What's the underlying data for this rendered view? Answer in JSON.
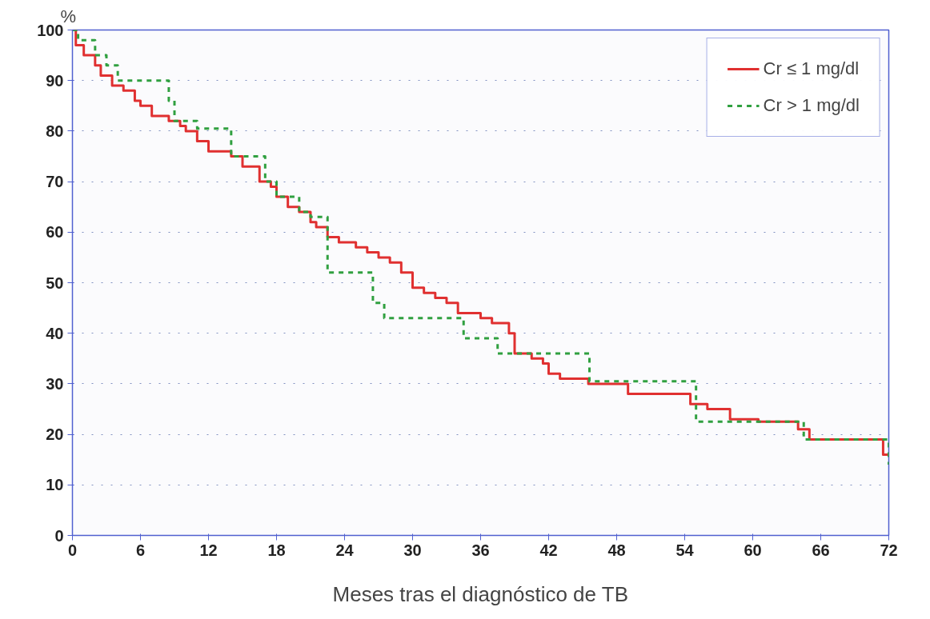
{
  "chart_data": {
    "type": "step",
    "xlabel": "Meses tras el diagnóstico de TB",
    "ylabel": "%",
    "xlim": [
      0,
      72
    ],
    "ylim": [
      0,
      100
    ],
    "xticks": [
      0,
      6,
      12,
      18,
      24,
      30,
      36,
      42,
      48,
      54,
      60,
      66,
      72
    ],
    "yticks": [
      0,
      10,
      20,
      30,
      40,
      50,
      60,
      70,
      80,
      90,
      100
    ],
    "grid": "y",
    "legend": "top right",
    "series": [
      {
        "name": "Cr ≤ 1 mg/dl",
        "color": "#e03030",
        "line_style": "solid",
        "x": [
          0,
          0.3,
          1,
          2,
          2.5,
          3.5,
          4.5,
          5.5,
          6,
          7,
          8.5,
          9.5,
          10,
          11,
          12,
          14,
          15,
          16.5,
          17.5,
          18,
          19,
          20,
          21,
          21.5,
          22.5,
          23.5,
          25,
          26,
          27,
          28,
          29,
          30,
          31,
          32,
          33,
          34,
          36,
          37,
          38.5,
          39,
          40.5,
          41.5,
          42,
          43,
          45.5,
          49,
          54.5,
          56,
          58,
          60.5,
          64,
          65,
          71.5,
          72
        ],
        "values": [
          100,
          97,
          95,
          93,
          91,
          89,
          88,
          86,
          85,
          83,
          82,
          81,
          80,
          78,
          76,
          75,
          73,
          70,
          69,
          67,
          65,
          64,
          62,
          61,
          59,
          58,
          57,
          56,
          55,
          54,
          52,
          49,
          48,
          47,
          46,
          44,
          43,
          42,
          40,
          36,
          35,
          34,
          32,
          31,
          30,
          28,
          26,
          25,
          23,
          22.5,
          21,
          19,
          16,
          16
        ]
      },
      {
        "name": "Cr > 1 mg/dl",
        "color": "#30a040",
        "line_style": "dashed",
        "x": [
          0,
          0.5,
          2,
          3,
          4,
          8.5,
          9,
          11,
          13.5,
          14,
          17,
          18,
          20,
          21,
          22.5,
          26.5,
          27.5,
          34.5,
          37.5,
          45.6,
          55,
          64.5,
          72
        ],
        "values": [
          100,
          98,
          95,
          93,
          90,
          86,
          82,
          80.5,
          80.5,
          75,
          70,
          67,
          64,
          63,
          52,
          46,
          43,
          39,
          36,
          30.5,
          22.5,
          19,
          14
        ]
      }
    ]
  }
}
